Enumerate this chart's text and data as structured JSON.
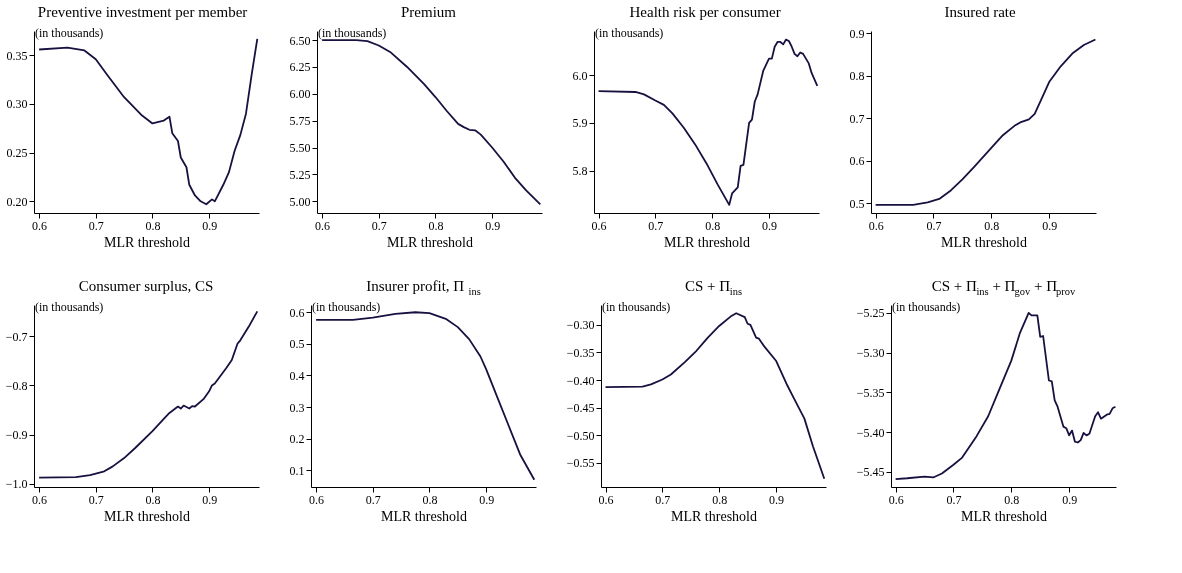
{
  "chart_data": [
    {
      "type": "line",
      "title": "Preventive investment per member",
      "xlabel": "MLR threshold",
      "annotations": [
        "(in thousands)"
      ],
      "grid": false,
      "xlim": [
        0.591,
        0.988
      ],
      "xticks": [
        0.6,
        0.7,
        0.8,
        0.9
      ],
      "ylim": [
        0.188,
        0.375
      ],
      "yticks": [
        {
          "value": 0.2,
          "label": "0.20"
        },
        0.25,
        {
          "value": 0.3,
          "label": "0.30"
        },
        0.35
      ],
      "x": [
        0.6,
        0.65,
        0.68,
        0.7,
        0.72,
        0.75,
        0.78,
        0.8,
        0.82,
        0.83,
        0.835,
        0.845,
        0.85,
        0.86,
        0.865,
        0.875,
        0.885,
        0.895,
        0.905,
        0.91,
        0.925,
        0.935,
        0.945,
        0.955,
        0.965,
        0.975,
        0.985
      ],
      "series": [
        {
          "color": "#1a1040",
          "values": [
            0.356,
            0.358,
            0.355,
            0.346,
            0.33,
            0.307,
            0.289,
            0.28,
            0.283,
            0.287,
            0.27,
            0.262,
            0.245,
            0.235,
            0.217,
            0.206,
            0.2,
            0.197,
            0.202,
            0.2,
            0.217,
            0.23,
            0.252,
            0.268,
            0.29,
            0.33,
            0.367
          ]
        }
      ]
    },
    {
      "type": "line",
      "title": "Premium",
      "xlabel": "MLR threshold",
      "annotations": [
        "(in thousands)"
      ],
      "grid": false,
      "xlim": [
        0.591,
        0.988
      ],
      "xticks": [
        0.6,
        0.7,
        0.8,
        0.9
      ],
      "ylim": [
        4.89,
        6.585
      ],
      "yticks": [
        {
          "value": 5,
          "label": "5.00"
        },
        5.25,
        {
          "value": 5.5,
          "label": "5.50"
        },
        5.75,
        {
          "value": 6,
          "label": "6.00"
        },
        6.25,
        {
          "value": 6.5,
          "label": "6.50"
        }
      ],
      "x": [
        0.6,
        0.66,
        0.68,
        0.7,
        0.72,
        0.75,
        0.78,
        0.8,
        0.82,
        0.84,
        0.85,
        0.86,
        0.87,
        0.88,
        0.9,
        0.92,
        0.94,
        0.96,
        0.985
      ],
      "series": [
        {
          "color": "#1a1040",
          "values": [
            6.5,
            6.5,
            6.49,
            6.45,
            6.39,
            6.25,
            6.09,
            5.97,
            5.84,
            5.72,
            5.69,
            5.665,
            5.66,
            5.62,
            5.5,
            5.37,
            5.22,
            5.1,
            4.97
          ]
        }
      ]
    },
    {
      "type": "line",
      "title": "Health risk per consumer",
      "xlabel": "MLR threshold",
      "annotations": [
        "(in thousands)"
      ],
      "grid": false,
      "xlim": [
        0.592,
        0.988
      ],
      "xticks": [
        0.6,
        0.7,
        0.8,
        0.9
      ],
      "ylim": [
        5.711,
        6.093
      ],
      "yticks": [
        5.8,
        5.9,
        {
          "value": 6,
          "label": "6.0"
        }
      ],
      "x": [
        0.6,
        0.665,
        0.68,
        0.7,
        0.715,
        0.73,
        0.75,
        0.77,
        0.79,
        0.81,
        0.83,
        0.835,
        0.845,
        0.85,
        0.855,
        0.865,
        0.87,
        0.875,
        0.88,
        0.89,
        0.9,
        0.905,
        0.91,
        0.915,
        0.92,
        0.925,
        0.93,
        0.935,
        0.94,
        0.945,
        0.95,
        0.955,
        0.96,
        0.97,
        0.975,
        0.985
      ],
      "series": [
        {
          "color": "#1a1040",
          "values": [
            5.967,
            5.965,
            5.96,
            5.947,
            5.938,
            5.92,
            5.89,
            5.855,
            5.815,
            5.77,
            5.728,
            5.752,
            5.765,
            5.81,
            5.812,
            5.9,
            5.907,
            5.945,
            5.96,
            6.01,
            6.035,
            6.035,
            6.06,
            6.07,
            6.07,
            6.065,
            6.075,
            6.072,
            6.06,
            6.045,
            6.04,
            6.048,
            6.045,
            6.025,
            6.005,
            5.978
          ]
        }
      ]
    },
    {
      "type": "line",
      "title": "Insured rate",
      "xlabel": "MLR threshold",
      "grid": false,
      "xlim": [
        0.592,
        0.981
      ],
      "xticks": [
        0.6,
        0.7,
        0.8,
        0.9
      ],
      "ylim": [
        0.477,
        0.905
      ],
      "yticks": [
        0.5,
        0.6,
        0.7,
        0.8,
        0.9
      ],
      "x": [
        0.6,
        0.665,
        0.69,
        0.71,
        0.73,
        0.75,
        0.77,
        0.8,
        0.82,
        0.84,
        0.85,
        0.865,
        0.875,
        0.89,
        0.9,
        0.92,
        0.94,
        0.96,
        0.98
      ],
      "series": [
        {
          "color": "#1a1040",
          "values": [
            0.496,
            0.496,
            0.502,
            0.51,
            0.53,
            0.556,
            0.585,
            0.63,
            0.66,
            0.682,
            0.69,
            0.697,
            0.71,
            0.755,
            0.785,
            0.822,
            0.852,
            0.872,
            0.885
          ]
        }
      ]
    },
    {
      "type": "line",
      "title": "Consumer surplus, CS",
      "xlabel": "MLR threshold",
      "annotations": [
        "(in thousands)"
      ],
      "grid": false,
      "xlim": [
        0.591,
        0.988
      ],
      "xticks": [
        0.6,
        0.7,
        0.8,
        0.9
      ],
      "ylim": [
        -1.007,
        -0.636
      ],
      "yticks": [
        {
          "value": -1.0,
          "label": "−1.0"
        },
        {
          "value": -0.9,
          "label": "−0.9"
        },
        {
          "value": -0.8,
          "label": "−0.8"
        },
        {
          "value": -0.7,
          "label": "−0.7"
        }
      ],
      "x": [
        0.6,
        0.665,
        0.69,
        0.715,
        0.73,
        0.75,
        0.77,
        0.8,
        0.82,
        0.83,
        0.845,
        0.85,
        0.855,
        0.865,
        0.87,
        0.875,
        0.89,
        0.9,
        0.905,
        0.91,
        0.93,
        0.94,
        0.95,
        0.955,
        0.97,
        0.985
      ],
      "series": [
        {
          "color": "#1a1040",
          "values": [
            -0.988,
            -0.987,
            -0.983,
            -0.975,
            -0.965,
            -0.948,
            -0.927,
            -0.893,
            -0.868,
            -0.856,
            -0.843,
            -0.847,
            -0.841,
            -0.847,
            -0.842,
            -0.843,
            -0.828,
            -0.812,
            -0.8,
            -0.796,
            -0.765,
            -0.748,
            -0.715,
            -0.708,
            -0.68,
            -0.649
          ]
        }
      ]
    },
    {
      "type": "line",
      "title": "Insurer profit, Π$_{ins}$",
      "xlabel": "MLR threshold",
      "annotations": [
        "(in thousands)"
      ],
      "grid": false,
      "xlim": [
        0.591,
        0.988
      ],
      "xticks": [
        0.6,
        0.7,
        0.8,
        0.9
      ],
      "ylim": [
        0.047,
        0.623
      ],
      "yticks": [
        0.1,
        0.2,
        0.3,
        0.4,
        0.5,
        0.6
      ],
      "x": [
        0.6,
        0.665,
        0.7,
        0.74,
        0.775,
        0.8,
        0.83,
        0.85,
        0.87,
        0.89,
        0.9,
        0.92,
        0.94,
        0.96,
        0.985
      ],
      "series": [
        {
          "color": "#1a1040",
          "values": [
            0.576,
            0.576,
            0.583,
            0.595,
            0.6,
            0.597,
            0.578,
            0.553,
            0.515,
            0.46,
            0.42,
            0.33,
            0.24,
            0.15,
            0.07
          ]
        }
      ]
    },
    {
      "type": "line",
      "title": "CS + Π$_{ins}$",
      "xlabel": "MLR threshold",
      "annotations": [
        "(in thousands)"
      ],
      "grid": false,
      "xlim": [
        0.592,
        0.988
      ],
      "xticks": [
        0.6,
        0.7,
        0.8,
        0.9
      ],
      "ylim": [
        -0.594,
        -0.264
      ],
      "yticks": [
        {
          "value": -0.55,
          "label": "−0.55"
        },
        {
          "value": -0.5,
          "label": "−0.50"
        },
        {
          "value": -0.45,
          "label": "−0.45"
        },
        {
          "value": -0.4,
          "label": "−0.40"
        },
        {
          "value": -0.35,
          "label": "−0.35"
        },
        {
          "value": -0.3,
          "label": "−0.30"
        }
      ],
      "x": [
        0.6,
        0.665,
        0.68,
        0.7,
        0.715,
        0.74,
        0.76,
        0.78,
        0.8,
        0.82,
        0.83,
        0.845,
        0.85,
        0.855,
        0.865,
        0.87,
        0.88,
        0.9,
        0.905,
        0.92,
        0.93,
        0.95,
        0.965,
        0.985
      ],
      "series": [
        {
          "color": "#1a1040",
          "values": [
            -0.413,
            -0.412,
            -0.408,
            -0.399,
            -0.39,
            -0.367,
            -0.347,
            -0.323,
            -0.302,
            -0.285,
            -0.279,
            -0.286,
            -0.298,
            -0.3,
            -0.323,
            -0.325,
            -0.34,
            -0.365,
            -0.376,
            -0.41,
            -0.43,
            -0.47,
            -0.52,
            -0.579
          ]
        }
      ]
    },
    {
      "type": "line",
      "title": "CS + Π$_{ins}$ + Π$_{gov}$ + Π$_{prov}$",
      "xlabel": "MLR threshold",
      "annotations": [
        "(in thousands)"
      ],
      "grid": false,
      "xlim": [
        0.592,
        0.981
      ],
      "xticks": [
        0.6,
        0.7,
        0.8,
        0.9
      ],
      "ylim": [
        -5.469,
        -5.24
      ],
      "yticks": [
        {
          "value": -5.45,
          "label": "−5.45"
        },
        {
          "value": -5.4,
          "label": "−5.40"
        },
        {
          "value": -5.35,
          "label": "−5.35"
        },
        {
          "value": -5.3,
          "label": "−5.30"
        },
        {
          "value": -5.25,
          "label": "−5.25"
        }
      ],
      "x": [
        0.6,
        0.62,
        0.65,
        0.665,
        0.68,
        0.7,
        0.715,
        0.74,
        0.76,
        0.78,
        0.8,
        0.815,
        0.83,
        0.835,
        0.845,
        0.85,
        0.855,
        0.865,
        0.87,
        0.875,
        0.88,
        0.89,
        0.895,
        0.9,
        0.905,
        0.91,
        0.915,
        0.92,
        0.925,
        0.93,
        0.935,
        0.945,
        0.95,
        0.955,
        0.965,
        0.97,
        0.975,
        0.98
      ],
      "series": [
        {
          "color": "#1a1040",
          "values": [
            -5.459,
            -5.458,
            -5.456,
            -5.457,
            -5.452,
            -5.441,
            -5.432,
            -5.405,
            -5.38,
            -5.345,
            -5.31,
            -5.275,
            -5.25,
            -5.253,
            -5.253,
            -5.28,
            -5.279,
            -5.335,
            -5.336,
            -5.36,
            -5.368,
            -5.393,
            -5.395,
            -5.404,
            -5.398,
            -5.412,
            -5.413,
            -5.41,
            -5.401,
            -5.404,
            -5.402,
            -5.38,
            -5.375,
            -5.383,
            -5.378,
            -5.377,
            -5.37,
            -5.368
          ]
        }
      ]
    }
  ]
}
